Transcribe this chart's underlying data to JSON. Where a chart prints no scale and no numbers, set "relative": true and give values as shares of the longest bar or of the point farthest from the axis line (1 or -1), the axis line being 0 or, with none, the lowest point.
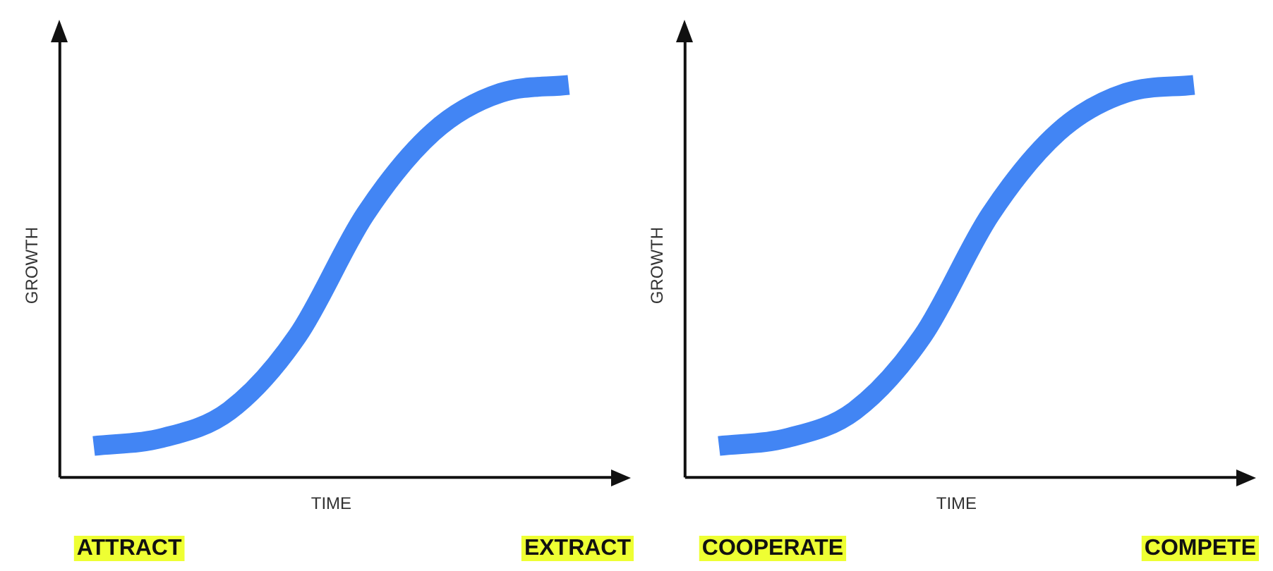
{
  "chart_data": [
    {
      "type": "line",
      "xlabel": "TIME",
      "ylabel": "GROWTH",
      "relative": true,
      "categories": [
        null,
        null,
        null,
        null,
        null,
        null,
        null,
        null
      ],
      "series": [
        {
          "color": "#4285f4",
          "values": [
            0.08,
            0.1,
            0.17,
            0.36,
            0.67,
            0.88,
            0.98,
            1
          ]
        }
      ],
      "annotations": [
        "ATTRACT",
        "EXTRACT"
      ]
    },
    {
      "type": "line",
      "xlabel": "TIME",
      "ylabel": "GROWTH",
      "relative": true,
      "categories": [
        null,
        null,
        null,
        null,
        null,
        null,
        null,
        null
      ],
      "series": [
        {
          "color": "#4285f4",
          "values": [
            0.08,
            0.1,
            0.17,
            0.36,
            0.67,
            0.88,
            0.98,
            1
          ]
        }
      ],
      "annotations": [
        "COOPERATE",
        "COMPETE"
      ]
    }
  ]
}
